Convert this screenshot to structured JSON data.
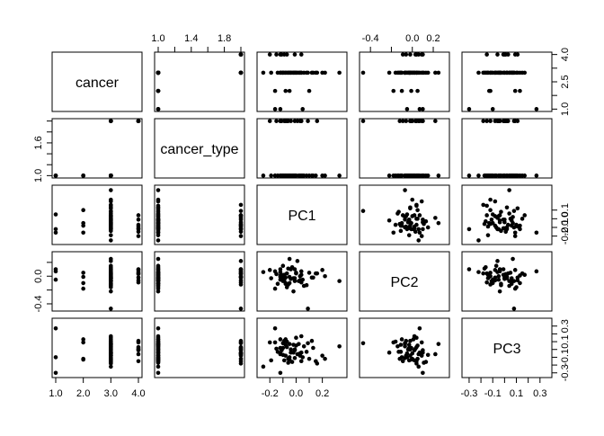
{
  "chart_data": {
    "type": "scatter",
    "title": "",
    "variables": [
      "cancer",
      "cancer_type",
      "PC1",
      "PC2",
      "PC3"
    ],
    "grid": false,
    "axes": [
      {
        "name": "cancer",
        "range": [
          1.0,
          4.0
        ],
        "ticks": [
          1.0,
          2.0,
          3.0,
          4.0
        ],
        "tick_labels": [
          "1.0",
          "2.0",
          "3.0",
          "4.0"
        ],
        "ticks_right": [
          1.0,
          1.75,
          2.5,
          3.25,
          4.0
        ],
        "tick_labels_right": [
          "1.0",
          "",
          "2.5",
          "",
          "4.0"
        ]
      },
      {
        "name": "cancer_type",
        "range": [
          1.0,
          2.0
        ],
        "ticks": [
          1.0,
          1.2,
          1.4,
          1.6,
          1.8,
          2.0
        ],
        "tick_labels": [
          "1.0",
          "",
          "1.4",
          "",
          "1.8",
          ""
        ],
        "ticks_left": [
          1.0,
          1.2,
          1.4,
          1.6,
          1.8,
          2.0
        ],
        "tick_labels_left": [
          "1.0",
          "",
          "",
          "1.6",
          "",
          ""
        ]
      },
      {
        "name": "PC1",
        "range": [
          -0.27,
          0.36
        ],
        "ticks": [
          -0.2,
          -0.1,
          0.0,
          0.1,
          0.2
        ],
        "tick_labels": [
          "-0.2",
          "",
          "0.0",
          "",
          "0.2"
        ],
        "ticks_right": [
          -0.2,
          -0.1,
          0.0,
          0.1
        ],
        "tick_labels_right": [
          "-0.2",
          "-0.1",
          "0.0",
          "0.1"
        ]
      },
      {
        "name": "PC2",
        "range": [
          -0.47,
          0.32
        ],
        "ticks": [
          -0.4,
          -0.2,
          0.0,
          0.2
        ],
        "tick_labels": [
          "-0.4",
          "",
          "0.0",
          "0.2"
        ],
        "ticks_left": [
          -0.4,
          -0.2,
          0.0,
          0.2
        ],
        "tick_labels_left": [
          "-0.4",
          "",
          "0.0",
          ""
        ]
      },
      {
        "name": "PC3",
        "range": [
          -0.33,
          0.37
        ],
        "ticks": [
          -0.3,
          -0.2,
          -0.1,
          0.0,
          0.1,
          0.2,
          0.3
        ],
        "tick_labels": [
          "-0.3",
          "",
          "-0.1",
          "",
          "0.1",
          "",
          "0.3"
        ],
        "ticks_right": [
          -0.3,
          -0.2,
          -0.1,
          0.0,
          0.1,
          0.2,
          0.3
        ],
        "tick_labels_right": [
          "-0.3",
          "",
          "-0.1",
          "",
          "0.1",
          "",
          "0.3"
        ]
      }
    ],
    "observations": {
      "cancer": [
        1,
        1,
        1,
        2,
        2,
        2,
        2,
        3,
        3,
        3,
        3,
        3,
        3,
        3,
        3,
        3,
        3,
        3,
        3,
        3,
        3,
        3,
        3,
        3,
        3,
        3,
        3,
        3,
        3,
        3,
        3,
        3,
        3,
        3,
        3,
        3,
        3,
        3,
        3,
        3,
        3,
        3,
        3,
        3,
        3,
        3,
        3,
        3,
        3,
        3,
        4,
        4,
        4,
        4,
        4,
        4,
        4,
        4
      ],
      "cancer_type": [
        1,
        1,
        1,
        1,
        1,
        1,
        1,
        1,
        1,
        1,
        1,
        1,
        1,
        1,
        1,
        1,
        1,
        1,
        1,
        1,
        1,
        1,
        1,
        1,
        1,
        1,
        1,
        1,
        1,
        1,
        1,
        1,
        1,
        1,
        1,
        1,
        1,
        1,
        1,
        1,
        1,
        2,
        2,
        2,
        2,
        2,
        2,
        2,
        2,
        2,
        2,
        2,
        2,
        2,
        2,
        2,
        2,
        2
      ],
      "PC1": [
        0.05,
        -0.16,
        -0.12,
        -0.16,
        -0.05,
        0.1,
        -0.08,
        0.22,
        0.12,
        -0.1,
        0.02,
        0.33,
        -0.01,
        -0.19,
        -0.12,
        0.15,
        0.04,
        -0.02,
        -0.25,
        -0.1,
        0.13,
        0.03,
        -0.14,
        -0.06,
        0.0,
        -0.05,
        0.06,
        -0.1,
        -0.04,
        -0.08,
        -0.11,
        -0.03,
        0.08,
        -0.02,
        -0.12,
        0.2,
        0.0,
        -0.07,
        -0.09,
        -0.01,
        -0.05,
        0.16,
        -0.04,
        0.09,
        0.01,
        -0.08,
        -0.12,
        0.04,
        0.03,
        -0.06,
        -0.09,
        -0.01,
        -0.15,
        -0.11,
        -0.12,
        -0.2,
        0.04,
        -0.07
      ],
      "PC2": [
        -0.05,
        0.07,
        0.1,
        -0.18,
        -0.01,
        0.05,
        -0.1,
        0.0,
        -0.02,
        -0.03,
        -0.07,
        -0.07,
        -0.03,
        -0.03,
        -0.05,
        0.04,
        0.02,
        -0.03,
        0.06,
        0.15,
        -0.02,
        -0.06,
        -0.11,
        0.11,
        0.04,
        -0.1,
        -0.14,
        -0.07,
        -0.04,
        -0.11,
        0.02,
        0.13,
        -0.13,
        -0.22,
        0.01,
        0.09,
        0.05,
        -0.16,
        0.02,
        -0.07,
        0.25,
        0.04,
        0.1,
        -0.47,
        0.22,
        -0.02,
        -0.01,
        0.07,
        0.0,
        -0.12,
        -0.06,
        0.1,
        0.03,
        -0.02,
        0.06,
        0.09,
        -0.09,
        0.04
      ],
      "PC3": [
        -0.1,
        0.27,
        -0.3,
        0.09,
        -0.13,
        -0.12,
        0.13,
        -0.12,
        0.11,
        0.02,
        0.07,
        0.04,
        0.0,
        -0.14,
        -0.05,
        -0.15,
        0.17,
        0.06,
        -0.22,
        -0.07,
        0.02,
        -0.08,
        -0.03,
        -0.17,
        0.15,
        -0.1,
        0.04,
        0.08,
        0.0,
        0.06,
        -0.01,
        -0.16,
        -0.03,
        -0.04,
        0.13,
        -0.08,
        0.05,
        0.1,
        -0.14,
        -0.11,
        0.07,
        -0.18,
        -0.04,
        0.08,
        -0.06,
        -0.08,
        0.02,
        -0.04,
        -0.05,
        -0.12,
        0.11,
        -0.01,
        0.01,
        0.0,
        -0.06,
        0.09,
        -0.15,
        0.03
      ]
    }
  }
}
